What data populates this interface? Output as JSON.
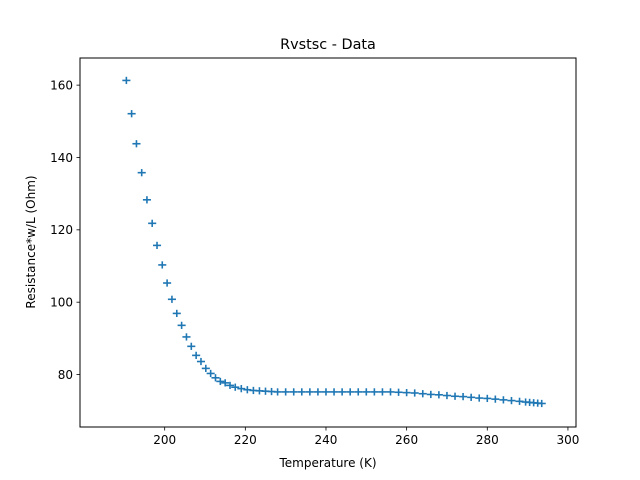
{
  "chart_data": {
    "type": "scatter",
    "title": "Rvstsc - Data",
    "xlabel": "Temperature (K)",
    "ylabel": "Resistance*w/L (Ohm)",
    "xlim": [
      179,
      302
    ],
    "ylim": [
      65.5,
      167.5
    ],
    "xticks": [
      200,
      220,
      240,
      260,
      280,
      300
    ],
    "yticks": [
      80,
      100,
      120,
      140,
      160
    ],
    "grid": false,
    "legend": "none",
    "marker": "errorbar-cross",
    "color": "#1f77b4",
    "xerr": 1.0,
    "yerr": 1.0,
    "series": [
      {
        "x": [
          190.5,
          191.8,
          193.0,
          194.3,
          195.6,
          196.9,
          198.1,
          199.4,
          200.6,
          201.8,
          203.0,
          204.2,
          205.4,
          206.6,
          207.8,
          209.0,
          210.2,
          211.4,
          212.6,
          213.8,
          215.0,
          216.2,
          217.5,
          219.0,
          220.5,
          222.0,
          223.5,
          225.0,
          226.5,
          228.0,
          230.0,
          232.0,
          234.0,
          236.0,
          238.0,
          240.0,
          242.0,
          244.0,
          246.0,
          248.0,
          250.0,
          252.0,
          254.0,
          256.0,
          258.0,
          260.0,
          262.0,
          264.0,
          266.0,
          268.0,
          270.0,
          272.0,
          274.0,
          276.0,
          278.0,
          280.0,
          282.0,
          284.0,
          286.0,
          288.0,
          289.5,
          290.5,
          291.5,
          292.5,
          293.5
        ],
        "y": [
          161.3,
          152.1,
          143.8,
          135.8,
          128.3,
          121.8,
          115.7,
          110.3,
          105.3,
          100.8,
          96.9,
          93.6,
          90.4,
          87.8,
          85.3,
          83.6,
          81.7,
          80.3,
          79.1,
          78.1,
          77.7,
          77.0,
          76.5,
          76.1,
          75.8,
          75.6,
          75.5,
          75.4,
          75.3,
          75.2,
          75.2,
          75.2,
          75.2,
          75.2,
          75.2,
          75.2,
          75.2,
          75.2,
          75.2,
          75.2,
          75.2,
          75.2,
          75.2,
          75.2,
          75.1,
          75.0,
          74.9,
          74.7,
          74.5,
          74.4,
          74.2,
          74.0,
          73.9,
          73.7,
          73.5,
          73.4,
          73.2,
          73.0,
          72.8,
          72.6,
          72.4,
          72.3,
          72.2,
          72.1,
          72.0
        ]
      }
    ]
  }
}
